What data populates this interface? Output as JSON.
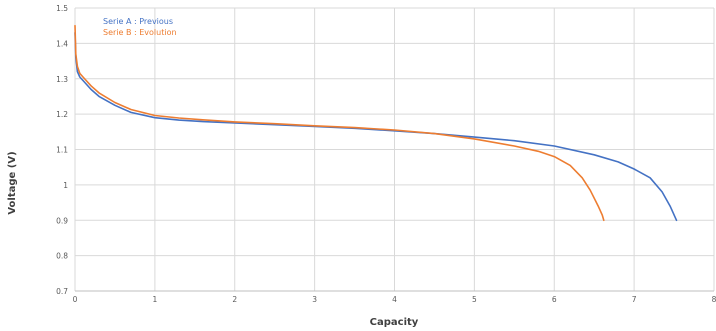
{
  "chart_data": {
    "type": "line",
    "title": "",
    "xlabel": "Capacity",
    "ylabel": "Voltage (V)",
    "xlim": [
      0,
      8
    ],
    "ylim": [
      0.7,
      1.5
    ],
    "xticks": [
      0,
      1,
      2,
      3,
      4,
      5,
      6,
      7,
      8
    ],
    "yticks": [
      0.7,
      0.8,
      0.9,
      1.0,
      1.1,
      1.2,
      1.3,
      1.4,
      1.5
    ],
    "xtick_labels": [
      "0",
      "1",
      "2",
      "3",
      "4",
      "5",
      "6",
      "7",
      "8"
    ],
    "ytick_labels": [
      "0.7",
      "0.8",
      "0.9",
      "1",
      "1.1",
      "1.2",
      "1.3",
      "1.4",
      "1.5"
    ],
    "grid": true,
    "legend_position": "top-left",
    "series": [
      {
        "name": "Serie A : Previous",
        "color": "#4472c4",
        "x": [
          0,
          0.01,
          0.03,
          0.06,
          0.1,
          0.2,
          0.3,
          0.5,
          0.7,
          1.0,
          1.3,
          1.6,
          2.0,
          2.5,
          3.0,
          3.5,
          4.0,
          4.5,
          5.0,
          5.5,
          6.0,
          6.5,
          6.8,
          7.0,
          7.2,
          7.35,
          7.45,
          7.53
        ],
        "y": [
          1.43,
          1.36,
          1.32,
          1.305,
          1.295,
          1.27,
          1.25,
          1.225,
          1.205,
          1.19,
          1.183,
          1.179,
          1.175,
          1.17,
          1.165,
          1.16,
          1.153,
          1.145,
          1.135,
          1.125,
          1.11,
          1.085,
          1.065,
          1.045,
          1.02,
          0.98,
          0.94,
          0.9
        ]
      },
      {
        "name": "Serie B : Evolution",
        "color": "#ed7d31",
        "x": [
          0,
          0.01,
          0.03,
          0.06,
          0.1,
          0.2,
          0.3,
          0.5,
          0.7,
          1.0,
          1.3,
          1.6,
          2.0,
          2.5,
          3.0,
          3.5,
          4.0,
          4.5,
          5.0,
          5.5,
          5.8,
          6.0,
          6.2,
          6.35,
          6.45,
          6.55,
          6.6,
          6.62
        ],
        "y": [
          1.45,
          1.37,
          1.335,
          1.315,
          1.305,
          1.28,
          1.26,
          1.233,
          1.213,
          1.196,
          1.189,
          1.184,
          1.178,
          1.173,
          1.167,
          1.162,
          1.155,
          1.145,
          1.13,
          1.11,
          1.095,
          1.08,
          1.055,
          1.02,
          0.985,
          0.94,
          0.915,
          0.9
        ]
      }
    ]
  }
}
